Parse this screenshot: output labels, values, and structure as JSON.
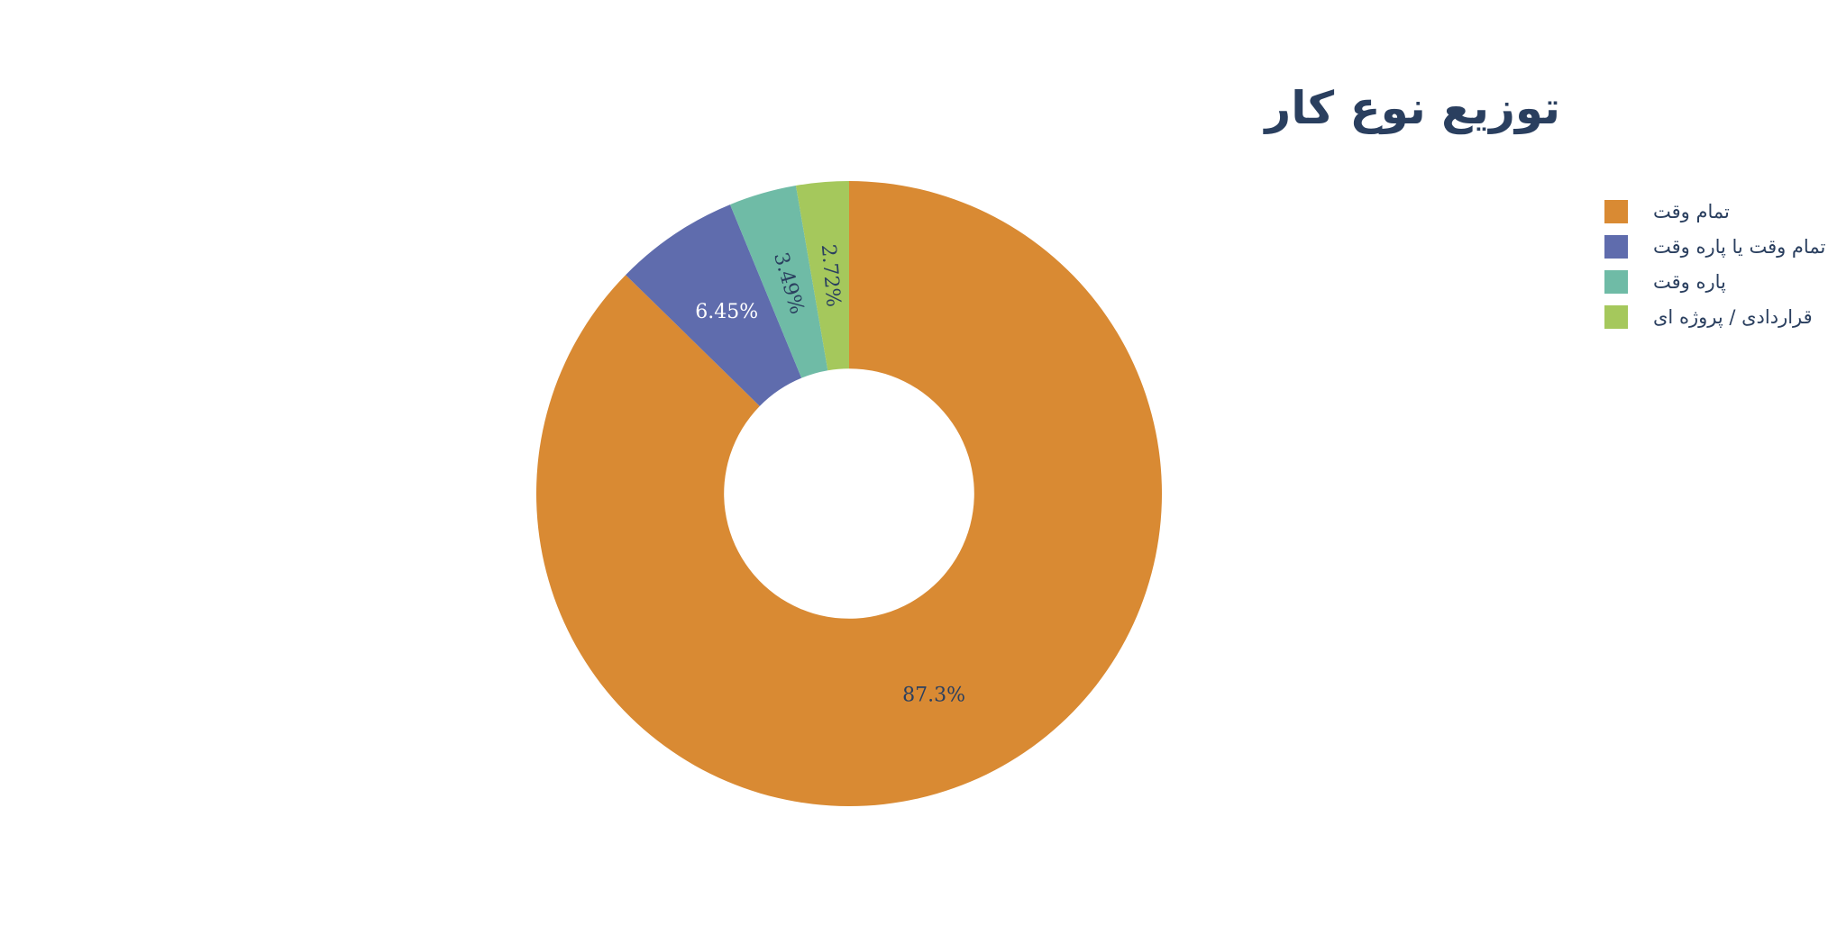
{
  "chart_data": {
    "type": "pie",
    "hole": 0.4,
    "title": "توزیع نوع کار",
    "slices": [
      {
        "label": "تمام وقت",
        "value": 87.3,
        "text": "87.3%",
        "color": "#d98a33",
        "text_color": "#2a3f5f"
      },
      {
        "label": "تمام وقت یا پاره وقت",
        "value": 6.45,
        "text": "6.45%",
        "color": "#5f6cad",
        "text_color": "#ffffff"
      },
      {
        "label": "پاره وقت",
        "value": 3.49,
        "text": "3.49%",
        "color": "#6fbba6",
        "text_color": "#2a3f5f"
      },
      {
        "label": "قراردادی / پروژه ای",
        "value": 2.72,
        "text": "2.72%",
        "color": "#a5c85c",
        "text_color": "#2a3f5f"
      }
    ],
    "direction": "clockwise",
    "start": "top",
    "legend_position": "top-right"
  }
}
